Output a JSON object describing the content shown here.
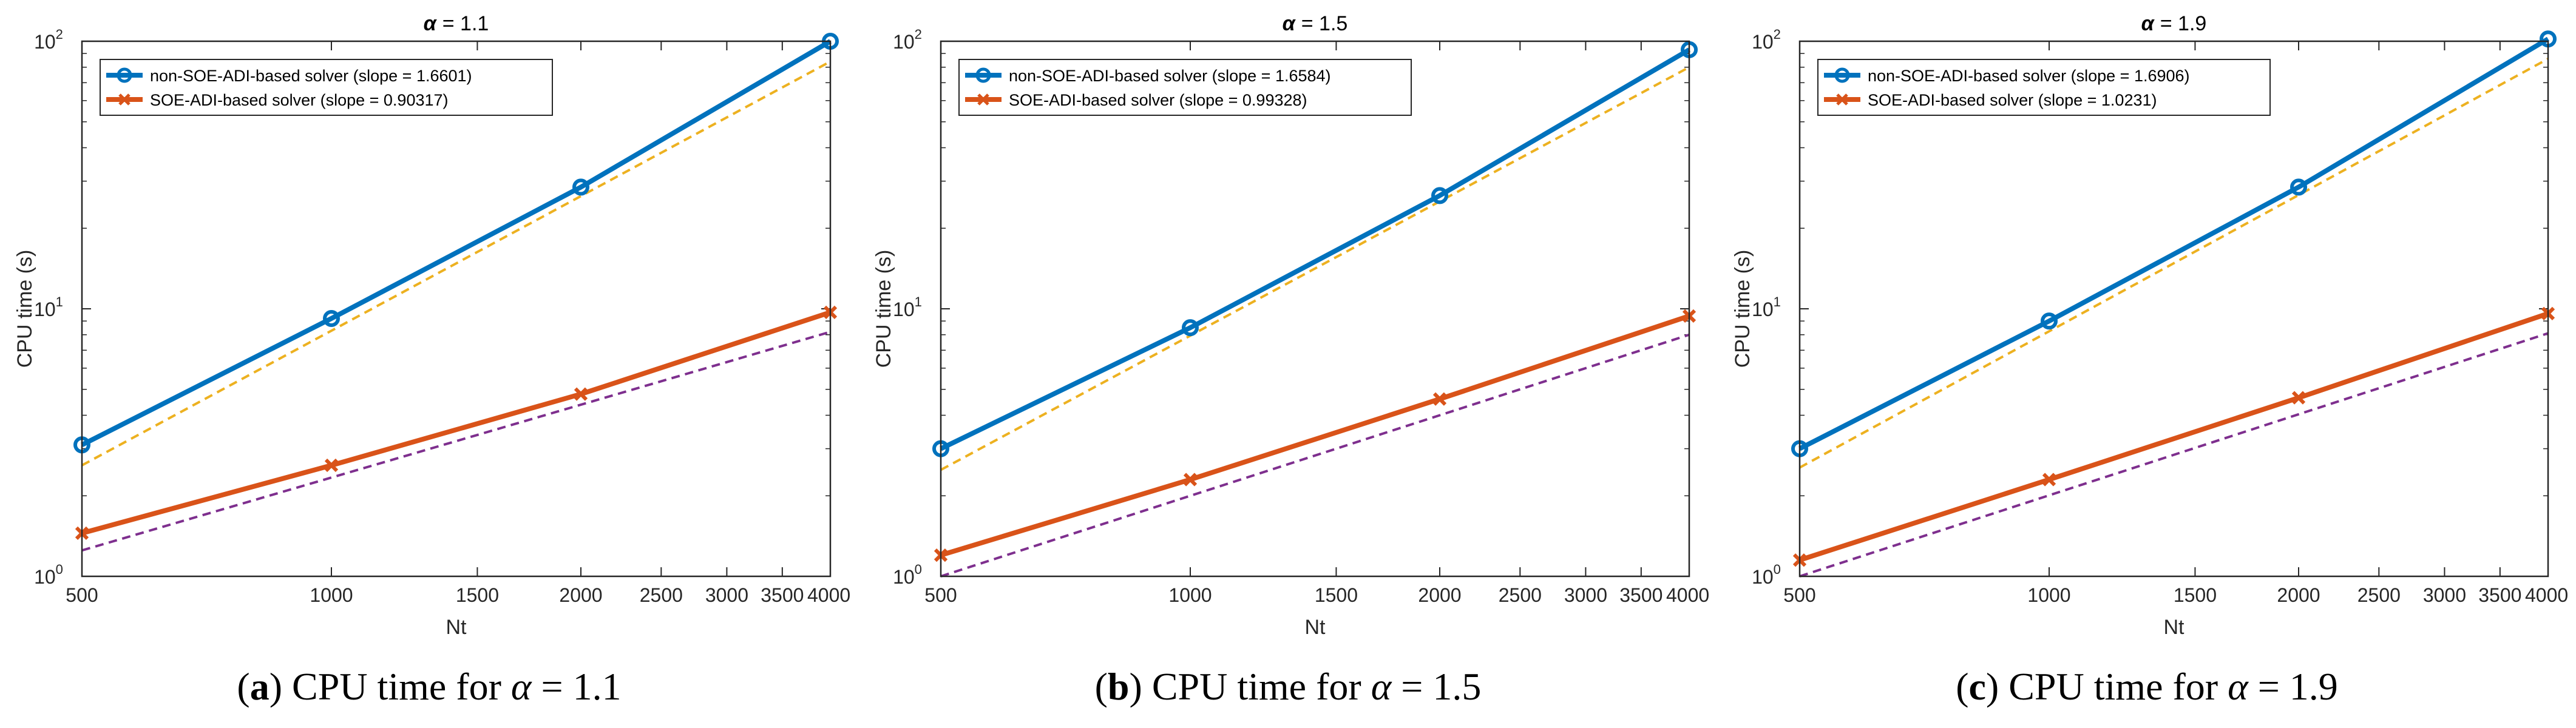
{
  "chart_data": [
    {
      "type": "line",
      "panel_letter": "a",
      "title_symbol": "α",
      "title_rest": "= 1.1",
      "caption_text": "CPU time for",
      "caption_alpha": "α",
      "caption_value": "= 1.1",
      "xlabel": "Nt",
      "ylabel": "CPU time (s)",
      "xscale": "log",
      "yscale": "log",
      "xlim": [
        500,
        4000
      ],
      "ylim": [
        1,
        100
      ],
      "x_ticks": [
        500,
        1000,
        1500,
        2000,
        2500,
        3000,
        3500,
        4000
      ],
      "x_tick_labels": [
        "500",
        "1000",
        "1500",
        "2000",
        "2500",
        "3000",
        "3500",
        "4000"
      ],
      "y_ticks": [
        1,
        10,
        100
      ],
      "y_tick_bases": [
        "10",
        "10",
        "10"
      ],
      "y_tick_exps": [
        "0",
        "1",
        "2"
      ],
      "legend_position": "top-left",
      "series": [
        {
          "name": "non-SOE-ADI-based solver (slope = 1.6601)",
          "color": "#0072bd",
          "marker": "circle",
          "x": [
            500,
            1000,
            2000,
            4000
          ],
          "values": [
            3.1,
            9.2,
            28.5,
            100
          ]
        },
        {
          "name": "SOE-ADI-based solver (slope = 0.90317)",
          "color": "#d95319",
          "marker": "x",
          "x": [
            500,
            1000,
            2000,
            4000
          ],
          "values": [
            1.45,
            2.6,
            4.8,
            9.7
          ]
        }
      ],
      "reference_lines": [
        {
          "color": "#edb120",
          "x": [
            500,
            4000
          ],
          "values": [
            2.6,
            84
          ]
        },
        {
          "color": "#7e2f8e",
          "x": [
            500,
            4000
          ],
          "values": [
            1.25,
            8.2
          ]
        }
      ]
    },
    {
      "type": "line",
      "panel_letter": "b",
      "title_symbol": "α",
      "title_rest": "= 1.5",
      "caption_text": "CPU time for",
      "caption_alpha": "α",
      "caption_value": "= 1.5",
      "xlabel": "Nt",
      "ylabel": "CPU time (s)",
      "xscale": "log",
      "yscale": "log",
      "xlim": [
        500,
        4000
      ],
      "ylim": [
        1,
        100
      ],
      "x_ticks": [
        500,
        1000,
        1500,
        2000,
        2500,
        3000,
        3500,
        4000
      ],
      "x_tick_labels": [
        "500",
        "1000",
        "1500",
        "2000",
        "2500",
        "3000",
        "3500",
        "4000"
      ],
      "y_ticks": [
        1,
        10,
        100
      ],
      "y_tick_bases": [
        "10",
        "10",
        "10"
      ],
      "y_tick_exps": [
        "0",
        "1",
        "2"
      ],
      "legend_position": "top-left",
      "series": [
        {
          "name": "non-SOE-ADI-based solver (slope = 1.6584)",
          "color": "#0072bd",
          "marker": "circle",
          "x": [
            500,
            1000,
            2000,
            4000
          ],
          "values": [
            3.0,
            8.5,
            26.5,
            93
          ]
        },
        {
          "name": "SOE-ADI-based solver (slope = 0.99328)",
          "color": "#d95319",
          "marker": "x",
          "x": [
            500,
            1000,
            2000,
            4000
          ],
          "values": [
            1.2,
            2.3,
            4.6,
            9.4
          ]
        }
      ],
      "reference_lines": [
        {
          "color": "#edb120",
          "x": [
            500,
            4000
          ],
          "values": [
            2.5,
            80
          ]
        },
        {
          "color": "#7e2f8e",
          "x": [
            500,
            4000
          ],
          "values": [
            1.0,
            8.0
          ]
        }
      ]
    },
    {
      "type": "line",
      "panel_letter": "c",
      "title_symbol": "α",
      "title_rest": "= 1.9",
      "caption_text": "CPU time for",
      "caption_alpha": "α",
      "caption_value": "= 1.9",
      "xlabel": "Nt",
      "ylabel": "CPU time (s)",
      "xscale": "log",
      "yscale": "log",
      "xlim": [
        500,
        4000
      ],
      "ylim": [
        1,
        100
      ],
      "x_ticks": [
        500,
        1000,
        1500,
        2000,
        2500,
        3000,
        3500,
        4000
      ],
      "x_tick_labels": [
        "500",
        "1000",
        "1500",
        "2000",
        "2500",
        "3000",
        "3500",
        "4000"
      ],
      "y_ticks": [
        1,
        10,
        100
      ],
      "y_tick_bases": [
        "10",
        "10",
        "10"
      ],
      "y_tick_exps": [
        "0",
        "1",
        "2"
      ],
      "legend_position": "top-left",
      "series": [
        {
          "name": "non-SOE-ADI-based solver (slope = 1.6906)",
          "color": "#0072bd",
          "marker": "circle",
          "x": [
            500,
            1000,
            2000,
            4000
          ],
          "values": [
            3.0,
            9.0,
            28.5,
            102
          ]
        },
        {
          "name": "SOE-ADI-based solver (slope = 1.0231)",
          "color": "#d95319",
          "marker": "x",
          "x": [
            500,
            1000,
            2000,
            4000
          ],
          "values": [
            1.15,
            2.3,
            4.65,
            9.6
          ]
        }
      ],
      "reference_lines": [
        {
          "color": "#edb120",
          "x": [
            500,
            4000
          ],
          "values": [
            2.55,
            86
          ]
        },
        {
          "color": "#7e2f8e",
          "x": [
            500,
            4000
          ],
          "values": [
            1.0,
            8.1
          ]
        }
      ]
    }
  ]
}
